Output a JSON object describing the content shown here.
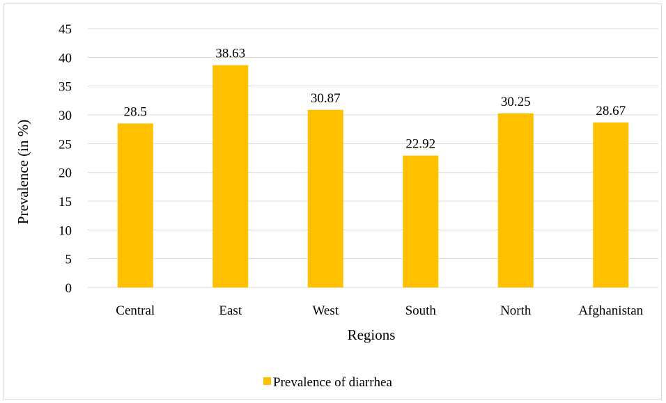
{
  "chart_data": {
    "type": "bar",
    "categories": [
      "Central",
      "East",
      "West",
      "South",
      "North",
      "Afghanistan"
    ],
    "series": [
      {
        "name": "Prevalence of diarrhea",
        "values": [
          28.5,
          38.63,
          30.87,
          22.92,
          30.25,
          28.67
        ],
        "color": "#FFC000"
      }
    ],
    "xlabel": "Regions",
    "ylabel": "Prevalence (in %)",
    "ylim": [
      0,
      45
    ],
    "yticks": [
      0,
      5,
      10,
      15,
      20,
      25,
      30,
      35,
      40,
      45
    ],
    "grid": true,
    "legend_position": "bottom",
    "gridline_color": "#d9d9d9"
  }
}
